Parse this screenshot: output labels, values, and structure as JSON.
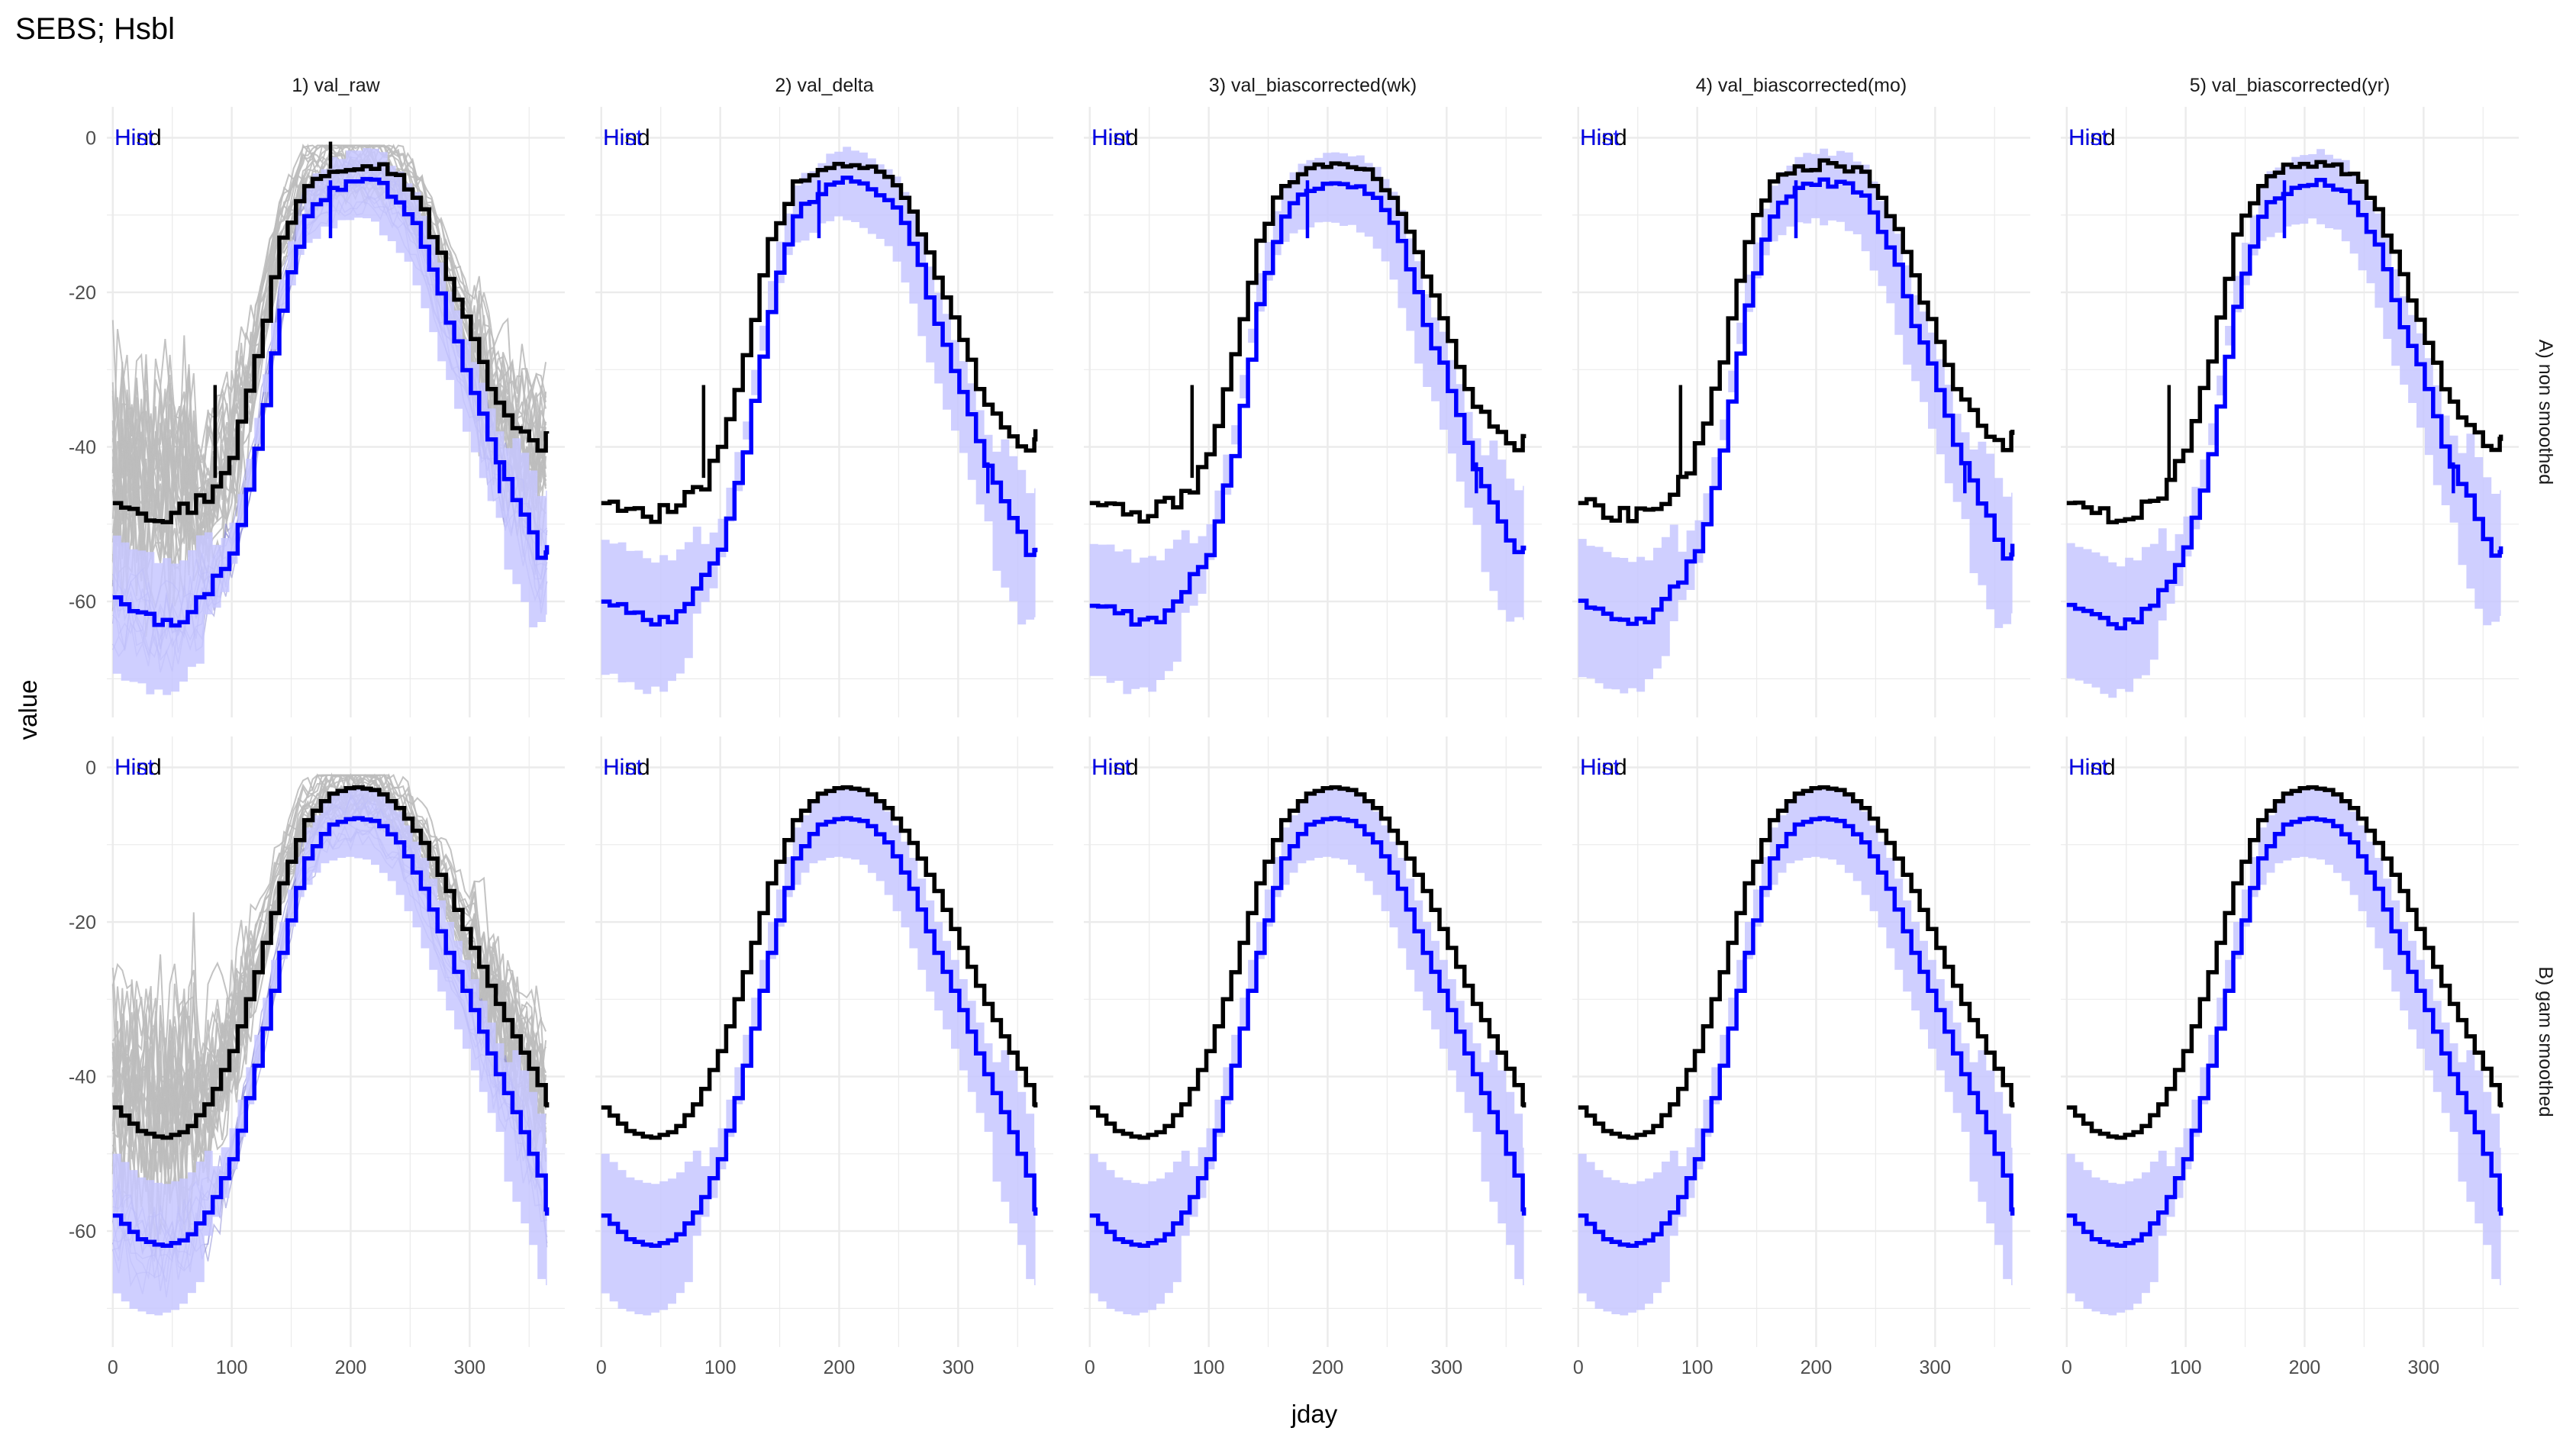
{
  "chart_data": {
    "type": "line",
    "title": "SEBS; Hsbl",
    "xlabel": "jday",
    "ylabel": "value",
    "xlim": [
      -5,
      380
    ],
    "ylim": [
      -75,
      4
    ],
    "x_ticks": [
      0,
      100,
      200,
      300
    ],
    "y_ticks": [
      0,
      -20,
      -40,
      -60
    ],
    "grid": true,
    "legend": "none",
    "columns": [
      "1) val_raw",
      "2) val_delta",
      "3) val_biascorrected(wk)",
      "4) val_biascorrected(mo)",
      "5) val_biascorrected(yr)"
    ],
    "rows": [
      "A) non smoothed",
      "B) gam smoothed"
    ],
    "panel_labels": [
      "Hind",
      "Hist"
    ],
    "colors": {
      "hind": "#000000",
      "hist": "#0000ff",
      "band": "#c7c7ff",
      "raw_lines": "#bdbdbd",
      "grid": "#ebebeb"
    },
    "series": [
      {
        "name": "Hind",
        "row": "A) non smoothed",
        "x": [
          0,
          20,
          40,
          60,
          80,
          100,
          120,
          140,
          160,
          180,
          200,
          220,
          240,
          260,
          280,
          300,
          320,
          340,
          360,
          365
        ],
        "values": [
          -47,
          -48,
          -49,
          -48,
          -46,
          -40,
          -28,
          -13,
          -6,
          -4,
          -3.5,
          -3.5,
          -5,
          -10,
          -18,
          -26,
          -34,
          -38,
          -41,
          -38
        ]
      },
      {
        "name": "Hist",
        "row": "A) non smoothed",
        "x": [
          0,
          20,
          40,
          60,
          80,
          100,
          120,
          140,
          160,
          180,
          200,
          220,
          240,
          260,
          280,
          300,
          320,
          340,
          360,
          365
        ],
        "values": [
          -60,
          -61,
          -63,
          -62,
          -58,
          -53,
          -40,
          -22,
          -10,
          -7,
          -5.5,
          -6,
          -8,
          -14,
          -24,
          -32,
          -42,
          -48,
          -55,
          -53
        ]
      },
      {
        "name": "Hind",
        "row": "B) gam smoothed",
        "x": [
          0,
          20,
          40,
          60,
          80,
          100,
          120,
          140,
          160,
          180,
          200,
          220,
          240,
          260,
          280,
          300,
          320,
          340,
          360,
          365
        ],
        "values": [
          -44,
          -47,
          -48,
          -47,
          -43,
          -36,
          -26,
          -15,
          -7,
          -3.5,
          -2.5,
          -3,
          -5.5,
          -10,
          -16,
          -23,
          -30,
          -36,
          -42,
          -44
        ]
      },
      {
        "name": "Hist",
        "row": "B) gam smoothed",
        "x": [
          0,
          20,
          40,
          60,
          80,
          100,
          120,
          140,
          160,
          180,
          200,
          220,
          240,
          260,
          280,
          300,
          320,
          340,
          360,
          365
        ],
        "values": [
          -58,
          -61,
          -62,
          -61,
          -57,
          -50,
          -38,
          -24,
          -12,
          -7.5,
          -6.5,
          -7,
          -10,
          -16,
          -24,
          -31,
          -39,
          -46,
          -54,
          -58
        ]
      }
    ]
  }
}
